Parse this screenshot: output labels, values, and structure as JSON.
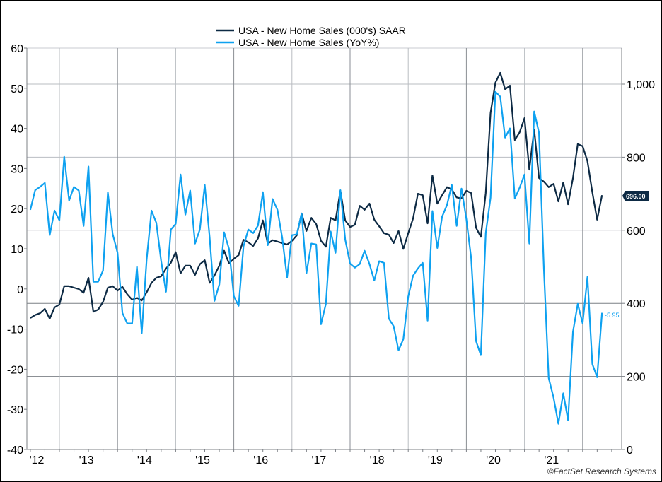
{
  "chart_data": {
    "type": "line",
    "title": "",
    "legend_position": "top-center",
    "x_tick_labels": [
      "'12",
      "'13",
      "'14",
      "'15",
      "'16",
      "'17",
      "'18",
      "'19",
      "'20",
      "'21"
    ],
    "x_start": "2012-07",
    "x_end": "2022-05",
    "frequency": "monthly",
    "left_axis": {
      "ylim": [
        -40,
        60
      ],
      "ticks": [
        "60",
        "50",
        "40",
        "30",
        "20",
        "10",
        "0",
        "-10",
        "-20",
        "-30",
        "-40"
      ],
      "tick_values": [
        60,
        50,
        40,
        30,
        20,
        10,
        0,
        -10,
        -20,
        -30,
        -40
      ]
    },
    "right_axis": {
      "ylim": [
        0,
        1100
      ],
      "ticks": [
        "1,000",
        "800",
        "600",
        "400",
        "200",
        "0"
      ],
      "tick_values": [
        1000,
        800,
        600,
        400,
        200,
        0
      ]
    },
    "grid": true,
    "series": [
      {
        "name": "USA - New Home Sales (000's) SAAR",
        "axis": "right",
        "color": "#0d2a44",
        "last_value_label": "696.00",
        "values": [
          360,
          368,
          373,
          385,
          358,
          389,
          397,
          447,
          447,
          443,
          439,
          429,
          470,
          377,
          383,
          404,
          443,
          447,
          435,
          445,
          425,
          410,
          415,
          408,
          430,
          456,
          470,
          474,
          495,
          511,
          540,
          482,
          503,
          503,
          478,
          507,
          518,
          456,
          476,
          503,
          544,
          509,
          522,
          532,
          574,
          567,
          557,
          578,
          627,
          563,
          573,
          569,
          565,
          561,
          571,
          586,
          646,
          598,
          634,
          617,
          571,
          555,
          634,
          627,
          708,
          627,
          609,
          615,
          667,
          656,
          673,
          629,
          611,
          592,
          588,
          565,
          598,
          549,
          592,
          632,
          700,
          696,
          619,
          750,
          673,
          696,
          718,
          712,
          690,
          687,
          708,
          702,
          607,
          582,
          702,
          921,
          1004,
          1031,
          986,
          996,
          847,
          868,
          907,
          766,
          876,
          743,
          733,
          718,
          727,
          679,
          731,
          671,
          743,
          836,
          830,
          789,
          704,
          629,
          696
        ]
      },
      {
        "name": "USA - New Home Sales (YoY%)",
        "axis": "left",
        "color": "#0ea1f0",
        "last_value_label": "-5.95",
        "values": [
          19.7,
          24.6,
          25.4,
          26.4,
          13.4,
          19.5,
          17.1,
          32.9,
          22.0,
          25.4,
          24.5,
          15.7,
          30.5,
          1.8,
          1.8,
          4.6,
          24.0,
          13.7,
          9.0,
          -6.0,
          -8.6,
          -8.6,
          5.5,
          -11.0,
          7.2,
          19.5,
          16.5,
          7.0,
          -0.7,
          14.8,
          16.2,
          28.5,
          18.5,
          24.5,
          11.3,
          14.8,
          25.9,
          12.9,
          -3.0,
          1.1,
          14.1,
          10.0,
          -1.8,
          -4.2,
          10.6,
          14.8,
          13.9,
          15.8,
          24.1,
          10.9,
          22.4,
          19.7,
          12.7,
          2.8,
          13.4,
          13.6,
          18.8,
          3.9,
          11.3,
          11.1,
          -8.8,
          -3.7,
          14.3,
          9.0,
          24.6,
          12.3,
          6.3,
          5.3,
          6.2,
          9.5,
          6.2,
          2.1,
          6.9,
          6.5,
          -7.4,
          -9.3,
          -15.3,
          -12.5,
          -1.9,
          3.3,
          5.1,
          6.5,
          -7.9,
          19.4,
          10.2,
          18.0,
          20.9,
          25.9,
          15.7,
          25.0,
          17.4,
          7.7,
          -13.0,
          -16.5,
          13.9,
          22.7,
          49.1,
          47.9,
          37.7,
          40.0,
          22.5,
          25.2,
          28.5,
          11.3,
          44.2,
          38.9,
          5.0,
          -22.2,
          -27.1,
          -33.6,
          -26.0,
          -32.7,
          -10.7,
          -3.7,
          -8.6,
          3.0,
          -18.7,
          -22.0,
          -5.95
        ]
      }
    ],
    "source": "©FactSet Research Systems"
  }
}
